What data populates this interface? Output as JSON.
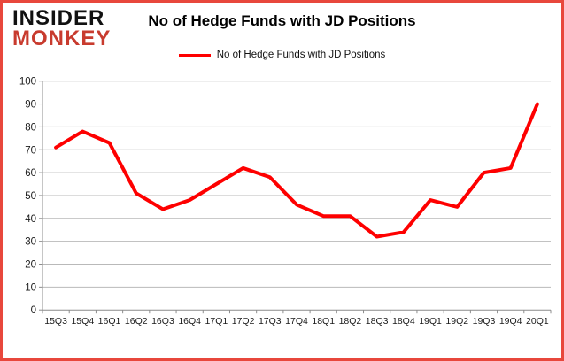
{
  "logo": {
    "line1": "INSIDER",
    "line2": "MONKEY"
  },
  "header": {
    "title": "No of Hedge Funds with JD Positions"
  },
  "legend": {
    "label": "No of Hedge Funds with JD Positions"
  },
  "colors": {
    "series": "#fe0000",
    "frame_border": "#e8473c",
    "logo_accent": "#c83b2e",
    "gridline": "#b9b9b9",
    "axis": "#8c8c8c",
    "label_text": "#1a1a1a"
  },
  "chart_data": {
    "type": "line",
    "title": "No of Hedge Funds with JD Positions",
    "xlabel": "",
    "ylabel": "",
    "categories": [
      "15Q3",
      "15Q4",
      "16Q1",
      "16Q2",
      "16Q3",
      "16Q4",
      "17Q1",
      "17Q2",
      "17Q3",
      "17Q4",
      "18Q1",
      "18Q2",
      "18Q3",
      "18Q4",
      "19Q1",
      "19Q2",
      "19Q3",
      "19Q4",
      "20Q1"
    ],
    "series": [
      {
        "name": "No of Hedge Funds with JD Positions",
        "values": [
          71,
          78,
          73,
          51,
          44,
          48,
          55,
          62,
          58,
          46,
          41,
          41,
          32,
          34,
          48,
          45,
          60,
          62,
          90
        ]
      }
    ],
    "ylim": [
      0,
      100
    ],
    "yticks": [
      0,
      10,
      20,
      30,
      40,
      50,
      60,
      70,
      80,
      90,
      100
    ],
    "grid": "horizontal",
    "legend_position": "top-center",
    "line_width": 4,
    "markers": false
  }
}
